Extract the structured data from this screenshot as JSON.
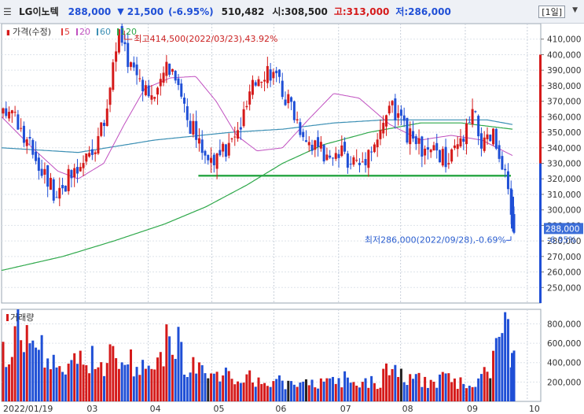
{
  "header": {
    "menu_icon": "hamburger-icon",
    "name": "LG이노텍",
    "price": "288,000",
    "change_arrow": "▼",
    "change": "21,500",
    "change_rate": "(-6.95%)",
    "volume": "510,482",
    "open_label": "시:",
    "open": "308,500",
    "high_label": "고:",
    "high": "313,000",
    "low_label": "저:",
    "low": "286,000",
    "period": "[1일]",
    "dropdown_icon": "chevron-down-icon",
    "colors": {
      "up": "#d51a1a",
      "down": "#1f4fd6"
    }
  },
  "chart_data": {
    "type": "candlestick",
    "legend": {
      "price_label": "가격(수정)",
      "ma": [
        "5",
        "20",
        "60",
        "120"
      ],
      "ma_colors": [
        "#e03c3c",
        "#c050c0",
        "#3b8fb4",
        "#2ea84a"
      ]
    },
    "price_axis": {
      "ylim": [
        240000,
        420000
      ],
      "ticks": [
        "250,000",
        "260,000",
        "270,000",
        "280,000",
        "290,000",
        "300,000",
        "310,000",
        "320,000",
        "330,000",
        "340,000",
        "350,000",
        "360,000",
        "370,000",
        "380,000",
        "390,000",
        "400,000",
        "410,000"
      ],
      "tick_values": [
        250000,
        260000,
        270000,
        280000,
        290000,
        300000,
        310000,
        320000,
        330000,
        340000,
        350000,
        360000,
        370000,
        380000,
        390000,
        400000,
        410000
      ]
    },
    "volume_axis": {
      "label": "거래량",
      "ylim": [
        0,
        950000
      ],
      "ticks": [
        "200,000",
        "400,000",
        "600,000",
        "800,000"
      ],
      "tick_values": [
        200000,
        400000,
        600000,
        800000
      ]
    },
    "x_axis": {
      "labels": [
        "2022/01/19",
        "03",
        "04",
        "05",
        "06",
        "07",
        "08",
        "09",
        "10"
      ]
    },
    "current_price": {
      "value": 288000,
      "label": "288,000",
      "rate": "-6.95%"
    },
    "annotations": {
      "high": {
        "text": "최고414,500(2022/03/23),43.92%",
        "value": 414500
      },
      "low": {
        "text": "최저286,000(2022/09/28),-0.69%",
        "value": 286000
      }
    },
    "support_line": {
      "value": 322000,
      "color": "#2ea84a"
    },
    "ma60": [
      [
        0,
        340000
      ],
      [
        0.15,
        337000
      ],
      [
        0.3,
        345000
      ],
      [
        0.45,
        350000
      ],
      [
        0.55,
        352000
      ],
      [
        0.65,
        356000
      ],
      [
        0.75,
        358000
      ],
      [
        0.85,
        358000
      ],
      [
        0.95,
        358000
      ],
      [
        1.0,
        355000
      ]
    ],
    "ma120": [
      [
        0,
        261000
      ],
      [
        0.12,
        270000
      ],
      [
        0.22,
        280000
      ],
      [
        0.32,
        291000
      ],
      [
        0.4,
        302000
      ],
      [
        0.48,
        316000
      ],
      [
        0.55,
        330000
      ],
      [
        0.63,
        342000
      ],
      [
        0.72,
        350000
      ],
      [
        0.82,
        356000
      ],
      [
        0.9,
        356000
      ],
      [
        1.0,
        352000
      ]
    ],
    "ma20": [
      [
        0,
        360000
      ],
      [
        0.06,
        340000
      ],
      [
        0.11,
        325000
      ],
      [
        0.15,
        320000
      ],
      [
        0.2,
        330000
      ],
      [
        0.24,
        355000
      ],
      [
        0.28,
        378000
      ],
      [
        0.33,
        385000
      ],
      [
        0.38,
        386000
      ],
      [
        0.42,
        370000
      ],
      [
        0.46,
        348000
      ],
      [
        0.5,
        338000
      ],
      [
        0.55,
        340000
      ],
      [
        0.6,
        358000
      ],
      [
        0.65,
        375000
      ],
      [
        0.7,
        372000
      ],
      [
        0.76,
        355000
      ],
      [
        0.82,
        345000
      ],
      [
        0.88,
        348000
      ],
      [
        0.94,
        345000
      ],
      [
        1.0,
        335000
      ]
    ],
    "price_path": [
      [
        0,
        360000
      ],
      [
        0.02,
        368000
      ],
      [
        0.04,
        345000
      ],
      [
        0.06,
        338000
      ],
      [
        0.08,
        325000
      ],
      [
        0.1,
        312000
      ],
      [
        0.12,
        318000
      ],
      [
        0.14,
        322000
      ],
      [
        0.16,
        330000
      ],
      [
        0.18,
        342000
      ],
      [
        0.2,
        358000
      ],
      [
        0.215,
        395000
      ],
      [
        0.225,
        414500
      ],
      [
        0.24,
        400000
      ],
      [
        0.26,
        390000
      ],
      [
        0.28,
        380000
      ],
      [
        0.3,
        370000
      ],
      [
        0.32,
        395000
      ],
      [
        0.34,
        388000
      ],
      [
        0.36,
        360000
      ],
      [
        0.38,
        345000
      ],
      [
        0.4,
        335000
      ],
      [
        0.42,
        332000
      ],
      [
        0.44,
        340000
      ],
      [
        0.46,
        350000
      ],
      [
        0.48,
        370000
      ],
      [
        0.5,
        388000
      ],
      [
        0.52,
        392000
      ],
      [
        0.54,
        380000
      ],
      [
        0.56,
        370000
      ],
      [
        0.58,
        355000
      ],
      [
        0.6,
        345000
      ],
      [
        0.62,
        338000
      ],
      [
        0.64,
        330000
      ],
      [
        0.66,
        335000
      ],
      [
        0.68,
        333000
      ],
      [
        0.7,
        330000
      ],
      [
        0.72,
        342000
      ],
      [
        0.74,
        348000
      ],
      [
        0.755,
        370000
      ],
      [
        0.77,
        360000
      ],
      [
        0.79,
        348000
      ],
      [
        0.81,
        342000
      ],
      [
        0.83,
        335000
      ],
      [
        0.85,
        338000
      ],
      [
        0.87,
        330000
      ],
      [
        0.89,
        340000
      ],
      [
        0.9,
        345000
      ],
      [
        0.92,
        362000
      ],
      [
        0.94,
        340000
      ],
      [
        0.96,
        348000
      ],
      [
        0.975,
        325000
      ],
      [
        0.985,
        318000
      ],
      [
        0.992,
        302000
      ],
      [
        1.0,
        288000
      ]
    ],
    "volume_profile": [
      [
        0,
        500000
      ],
      [
        0.03,
        780000
      ],
      [
        0.06,
        600000
      ],
      [
        0.1,
        430000
      ],
      [
        0.15,
        420000
      ],
      [
        0.2,
        470000
      ],
      [
        0.22,
        560000
      ],
      [
        0.24,
        520000
      ],
      [
        0.27,
        380000
      ],
      [
        0.31,
        400000
      ],
      [
        0.33,
        860000
      ],
      [
        0.36,
        380000
      ],
      [
        0.4,
        300000
      ],
      [
        0.45,
        260000
      ],
      [
        0.5,
        240000
      ],
      [
        0.55,
        210000
      ],
      [
        0.6,
        200000
      ],
      [
        0.65,
        210000
      ],
      [
        0.68,
        280000
      ],
      [
        0.7,
        190000
      ],
      [
        0.74,
        230000
      ],
      [
        0.76,
        440000
      ],
      [
        0.8,
        220000
      ],
      [
        0.85,
        250000
      ],
      [
        0.9,
        200000
      ],
      [
        0.95,
        300000
      ],
      [
        0.98,
        880000
      ],
      [
        1.0,
        500000
      ]
    ]
  }
}
